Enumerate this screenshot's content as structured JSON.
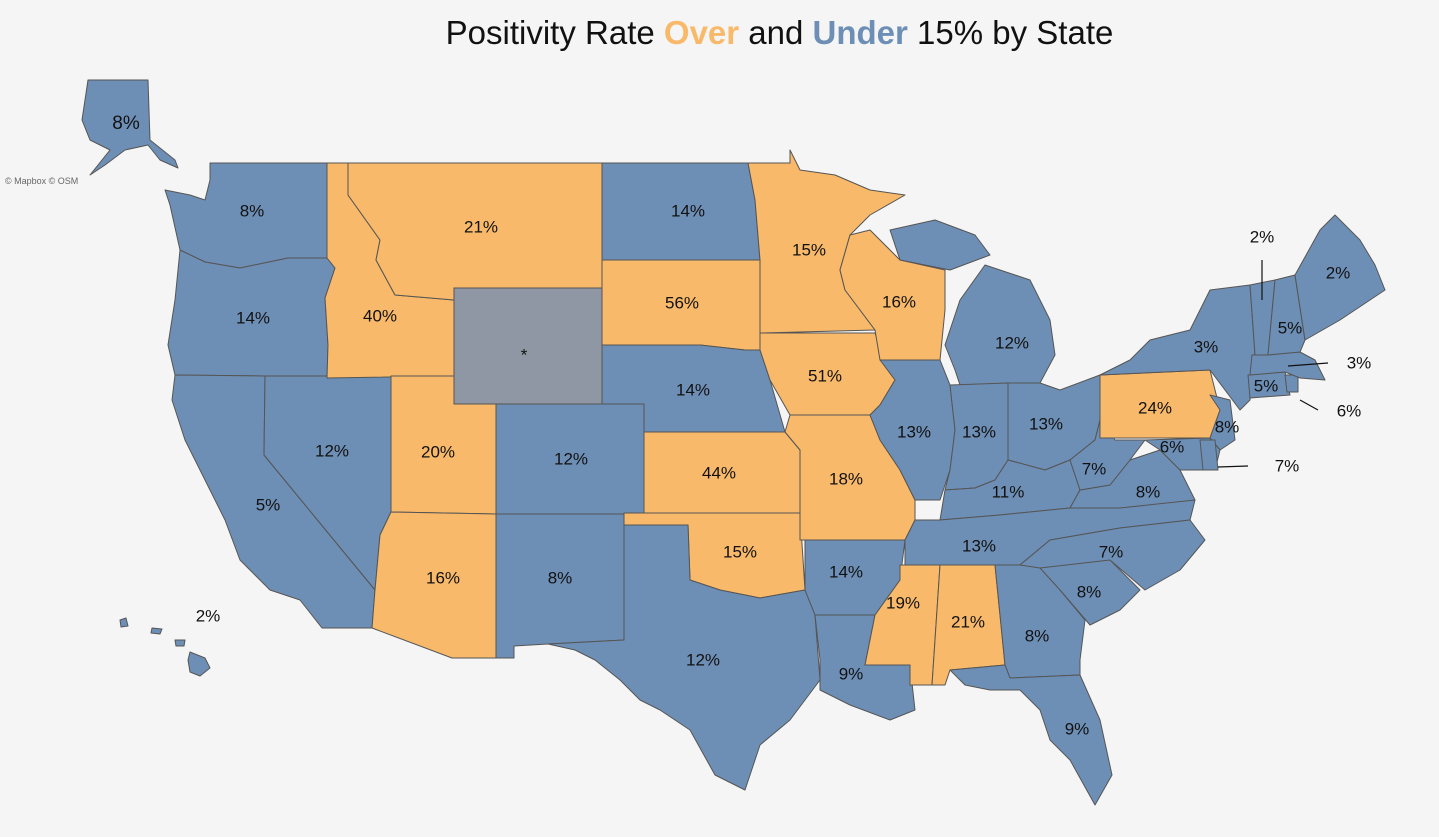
{
  "title": {
    "prefix": "Positivity Rate ",
    "over": "Over",
    "middle": " and ",
    "under": "Under",
    "suffix": " 15% by State"
  },
  "attribution": "© Mapbox © OSM",
  "colors": {
    "over": "#f8b96a",
    "under": "#6e8fb5",
    "no_data": "#8e97a3",
    "border": "#555555",
    "background": "#f5f5f5"
  },
  "map": {
    "threshold_percent": 15,
    "states": [
      {
        "id": "AK",
        "value": "8%",
        "category": "under"
      },
      {
        "id": "HI",
        "value": "2%",
        "category": "under"
      },
      {
        "id": "WA",
        "value": "8%",
        "category": "under"
      },
      {
        "id": "OR",
        "value": "14%",
        "category": "under"
      },
      {
        "id": "CA",
        "value": "5%",
        "category": "under"
      },
      {
        "id": "NV",
        "value": "12%",
        "category": "under"
      },
      {
        "id": "ID",
        "value": "40%",
        "category": "over"
      },
      {
        "id": "MT",
        "value": "21%",
        "category": "over"
      },
      {
        "id": "WY",
        "value": "*",
        "category": "no_data"
      },
      {
        "id": "UT",
        "value": "20%",
        "category": "over"
      },
      {
        "id": "AZ",
        "value": "16%",
        "category": "over"
      },
      {
        "id": "CO",
        "value": "12%",
        "category": "under"
      },
      {
        "id": "NM",
        "value": "8%",
        "category": "under"
      },
      {
        "id": "ND",
        "value": "14%",
        "category": "under"
      },
      {
        "id": "SD",
        "value": "56%",
        "category": "over"
      },
      {
        "id": "NE",
        "value": "14%",
        "category": "under"
      },
      {
        "id": "KS",
        "value": "44%",
        "category": "over"
      },
      {
        "id": "OK",
        "value": "15%",
        "category": "over"
      },
      {
        "id": "TX",
        "value": "12%",
        "category": "under"
      },
      {
        "id": "MN",
        "value": "15%",
        "category": "over"
      },
      {
        "id": "IA",
        "value": "51%",
        "category": "over"
      },
      {
        "id": "MO",
        "value": "18%",
        "category": "over"
      },
      {
        "id": "AR",
        "value": "14%",
        "category": "under"
      },
      {
        "id": "LA",
        "value": "9%",
        "category": "under"
      },
      {
        "id": "WI",
        "value": "16%",
        "category": "over"
      },
      {
        "id": "IL",
        "value": "13%",
        "category": "under"
      },
      {
        "id": "MI",
        "value": "12%",
        "category": "under"
      },
      {
        "id": "IN",
        "value": "13%",
        "category": "under"
      },
      {
        "id": "OH",
        "value": "13%",
        "category": "under"
      },
      {
        "id": "KY",
        "value": "11%",
        "category": "under"
      },
      {
        "id": "TN",
        "value": "13%",
        "category": "under"
      },
      {
        "id": "MS",
        "value": "19%",
        "category": "over"
      },
      {
        "id": "AL",
        "value": "21%",
        "category": "over"
      },
      {
        "id": "GA",
        "value": "8%",
        "category": "under"
      },
      {
        "id": "FL",
        "value": "9%",
        "category": "under"
      },
      {
        "id": "SC",
        "value": "8%",
        "category": "under"
      },
      {
        "id": "NC",
        "value": "7%",
        "category": "under"
      },
      {
        "id": "VA",
        "value": "8%",
        "category": "under"
      },
      {
        "id": "WV",
        "value": "7%",
        "category": "under"
      },
      {
        "id": "PA",
        "value": "24%",
        "category": "over"
      },
      {
        "id": "NY",
        "value": "3%",
        "category": "under"
      },
      {
        "id": "NJ",
        "value": "8%",
        "category": "under"
      },
      {
        "id": "MD",
        "value": "6%",
        "category": "under"
      },
      {
        "id": "DE",
        "value": "7%",
        "category": "under"
      },
      {
        "id": "CT",
        "value": "5%",
        "category": "under"
      },
      {
        "id": "RI",
        "value": "6%",
        "category": "under"
      },
      {
        "id": "MA",
        "value": "3%",
        "category": "under"
      },
      {
        "id": "VT",
        "value": "2%",
        "category": "under"
      },
      {
        "id": "NH",
        "value": "5%",
        "category": "under"
      },
      {
        "id": "ME",
        "value": "2%",
        "category": "under"
      }
    ]
  }
}
